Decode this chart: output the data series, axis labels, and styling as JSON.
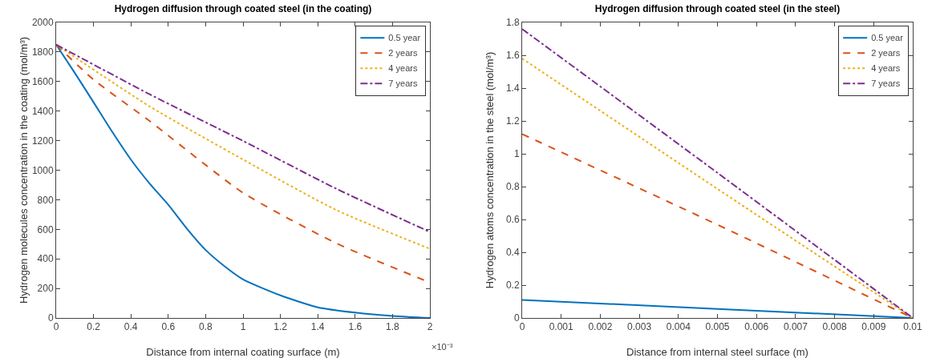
{
  "chart_data": [
    {
      "type": "line",
      "title": "Hydrogen diffusion through coated steel (in the coating)",
      "xlabel": "Distance from internal coating surface (m)",
      "ylabel": "Hydrogen molecules concentration in the coating (mol/m³)",
      "annotations": [
        "×10⁻³"
      ],
      "x": [
        0,
        0.1,
        0.2,
        0.3,
        0.4,
        0.5,
        0.6,
        0.7,
        0.8,
        0.9,
        1,
        1.2,
        1.4,
        1.6,
        1.8,
        2
      ],
      "series": [
        {
          "name": "0.5 year",
          "color": "#0072bd",
          "line_style": "solid",
          "values": [
            1850,
            1658,
            1460,
            1260,
            1072,
            910,
            766,
            604,
            460,
            351,
            261,
            153,
            72,
            36,
            13,
            0
          ]
        },
        {
          "name": "2 years",
          "color": "#d95319",
          "line_style": "dashed",
          "x": [
            0,
            0.2,
            0.5,
            1,
            1.5,
            2
          ],
          "values": [
            1850,
            1613,
            1333,
            847,
            505,
            240
          ]
        },
        {
          "name": "4 years",
          "color": "#edb120",
          "line_style": "dotted",
          "x": [
            0,
            0.5,
            1,
            1.5,
            2
          ],
          "values": [
            1850,
            1432,
            1072,
            730,
            468
          ]
        },
        {
          "name": "7 years",
          "color": "#7e2f8e",
          "line_style": "dashdot",
          "x": [
            0,
            0.5,
            1,
            1.5,
            2
          ],
          "values": [
            1850,
            1514,
            1198,
            874,
            582
          ]
        }
      ],
      "xlim": [
        0,
        2
      ],
      "xticks": [
        0,
        0.2,
        0.4,
        0.6,
        0.8,
        1,
        1.2,
        1.4,
        1.6,
        1.8,
        2
      ],
      "ylim": [
        0,
        2000
      ],
      "yticks": [
        0,
        200,
        400,
        600,
        800,
        1000,
        1200,
        1400,
        1600,
        1800,
        2000
      ],
      "grid": false,
      "legend": "top right",
      "marker": "none"
    },
    {
      "type": "line",
      "title": "Hydrogen diffusion through coated steel (in the steel)",
      "xlabel": "Distance from internal steel surface (m)",
      "ylabel": "Hydrogen atoms concentration in the steel (mol/m³)",
      "x": [
        0,
        0.005,
        0.01
      ],
      "series": [
        {
          "name": "0.5 year",
          "color": "#0072bd",
          "line_style": "solid",
          "values": [
            0.11,
            0.055,
            0
          ]
        },
        {
          "name": "2 years",
          "color": "#d95319",
          "line_style": "dashed",
          "values": [
            1.12,
            0.568,
            0
          ]
        },
        {
          "name": "4 years",
          "color": "#edb120",
          "line_style": "dotted",
          "values": [
            1.58,
            0.786,
            0
          ]
        },
        {
          "name": "7 years",
          "color": "#7e2f8e",
          "line_style": "dashdot",
          "values": [
            1.76,
            0.884,
            0
          ]
        }
      ],
      "xlim": [
        0,
        0.01
      ],
      "xticks": [
        0,
        0.001,
        0.002,
        0.003,
        0.004,
        0.005,
        0.006,
        0.007,
        0.008,
        0.009,
        0.01
      ],
      "ylim": [
        0,
        1.8
      ],
      "yticks": [
        0,
        0.2,
        0.4,
        0.6,
        0.8,
        1,
        1.2,
        1.4,
        1.6,
        1.8
      ],
      "grid": false,
      "legend": "top right",
      "marker": "none"
    }
  ]
}
